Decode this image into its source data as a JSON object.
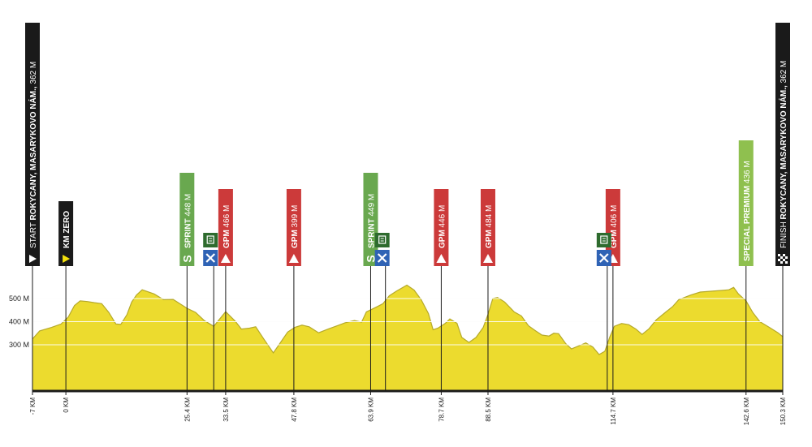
{
  "chart_data": {
    "type": "area",
    "ylabel_ticks": [
      "300 M",
      "400 M",
      "500 M"
    ],
    "y_ticks_values": [
      300,
      400,
      500
    ],
    "x_range_km": [
      -7,
      150.3
    ],
    "y_range_m": [
      100,
      600
    ],
    "fill_color": "#ecdb2e",
    "outline_color": "#b5a92a",
    "profile": [
      {
        "x": -7,
        "y": 325
      },
      {
        "x": -5.5,
        "y": 360
      },
      {
        "x": -3,
        "y": 375
      },
      {
        "x": -1,
        "y": 390
      },
      {
        "x": 0.5,
        "y": 420
      },
      {
        "x": 1.8,
        "y": 470
      },
      {
        "x": 3,
        "y": 490
      },
      {
        "x": 4.5,
        "y": 487
      },
      {
        "x": 6,
        "y": 482
      },
      {
        "x": 7.5,
        "y": 478
      },
      {
        "x": 9,
        "y": 440
      },
      {
        "x": 10.5,
        "y": 390
      },
      {
        "x": 11.5,
        "y": 388
      },
      {
        "x": 12.8,
        "y": 430
      },
      {
        "x": 13.8,
        "y": 485
      },
      {
        "x": 14.8,
        "y": 515
      },
      {
        "x": 16,
        "y": 538
      },
      {
        "x": 18.5,
        "y": 520
      },
      {
        "x": 20.5,
        "y": 495
      },
      {
        "x": 22.5,
        "y": 496
      },
      {
        "x": 25.4,
        "y": 458
      },
      {
        "x": 27.2,
        "y": 440
      },
      {
        "x": 29,
        "y": 405
      },
      {
        "x": 31,
        "y": 380
      },
      {
        "x": 33.5,
        "y": 443
      },
      {
        "x": 35.5,
        "y": 402
      },
      {
        "x": 36.8,
        "y": 368
      },
      {
        "x": 38.5,
        "y": 372
      },
      {
        "x": 39.8,
        "y": 378
      },
      {
        "x": 41.5,
        "y": 325
      },
      {
        "x": 43.5,
        "y": 265
      },
      {
        "x": 45,
        "y": 310
      },
      {
        "x": 46.5,
        "y": 355
      },
      {
        "x": 48,
        "y": 375
      },
      {
        "x": 49.5,
        "y": 385
      },
      {
        "x": 51,
        "y": 378
      },
      {
        "x": 53,
        "y": 352
      },
      {
        "x": 55,
        "y": 368
      },
      {
        "x": 57,
        "y": 383
      },
      {
        "x": 58.5,
        "y": 395
      },
      {
        "x": 60.5,
        "y": 405
      },
      {
        "x": 62,
        "y": 398
      },
      {
        "x": 63,
        "y": 442
      },
      {
        "x": 65,
        "y": 462
      },
      {
        "x": 66.5,
        "y": 478
      },
      {
        "x": 67.8,
        "y": 512
      },
      {
        "x": 69.3,
        "y": 532
      },
      {
        "x": 71.5,
        "y": 558
      },
      {
        "x": 73,
        "y": 537
      },
      {
        "x": 74.5,
        "y": 495
      },
      {
        "x": 76,
        "y": 435
      },
      {
        "x": 77,
        "y": 365
      },
      {
        "x": 78,
        "y": 372
      },
      {
        "x": 79.5,
        "y": 392
      },
      {
        "x": 80.5,
        "y": 412
      },
      {
        "x": 82,
        "y": 393
      },
      {
        "x": 83,
        "y": 332
      },
      {
        "x": 84.5,
        "y": 310
      },
      {
        "x": 86,
        "y": 332
      },
      {
        "x": 87.5,
        "y": 375
      },
      {
        "x": 88.5,
        "y": 432
      },
      {
        "x": 89.5,
        "y": 500
      },
      {
        "x": 90.5,
        "y": 505
      },
      {
        "x": 92,
        "y": 485
      },
      {
        "x": 94,
        "y": 442
      },
      {
        "x": 95.5,
        "y": 425
      },
      {
        "x": 97,
        "y": 382
      },
      {
        "x": 98.5,
        "y": 360
      },
      {
        "x": 99.8,
        "y": 342
      },
      {
        "x": 101.3,
        "y": 338
      },
      {
        "x": 102.3,
        "y": 350
      },
      {
        "x": 103.3,
        "y": 348
      },
      {
        "x": 104.8,
        "y": 305
      },
      {
        "x": 106,
        "y": 282
      },
      {
        "x": 107.5,
        "y": 295
      },
      {
        "x": 109,
        "y": 308
      },
      {
        "x": 110.5,
        "y": 290
      },
      {
        "x": 111.8,
        "y": 258
      },
      {
        "x": 113,
        "y": 272
      },
      {
        "x": 114,
        "y": 332
      },
      {
        "x": 115,
        "y": 380
      },
      {
        "x": 116.5,
        "y": 392
      },
      {
        "x": 118,
        "y": 387
      },
      {
        "x": 119.5,
        "y": 368
      },
      {
        "x": 120.8,
        "y": 345
      },
      {
        "x": 122.2,
        "y": 368
      },
      {
        "x": 123.8,
        "y": 408
      },
      {
        "x": 125.8,
        "y": 442
      },
      {
        "x": 127.2,
        "y": 465
      },
      {
        "x": 128.5,
        "y": 495
      },
      {
        "x": 131,
        "y": 515
      },
      {
        "x": 133,
        "y": 528
      },
      {
        "x": 135.5,
        "y": 532
      },
      {
        "x": 137.5,
        "y": 535
      },
      {
        "x": 139,
        "y": 538
      },
      {
        "x": 140,
        "y": 548
      },
      {
        "x": 141,
        "y": 520
      },
      {
        "x": 142.6,
        "y": 490
      },
      {
        "x": 144,
        "y": 440
      },
      {
        "x": 145.5,
        "y": 400
      },
      {
        "x": 147.5,
        "y": 375
      },
      {
        "x": 149.3,
        "y": 352
      },
      {
        "x": 150.3,
        "y": 335
      }
    ],
    "km_markers": [
      {
        "x": -7,
        "label": "-7 KM"
      },
      {
        "x": 0,
        "label": "0 KM"
      },
      {
        "x": 25.4,
        "label": "25.4 KM"
      },
      {
        "x": 33.5,
        "label": "33.5 KM"
      },
      {
        "x": 47.8,
        "label": "47.8 KM"
      },
      {
        "x": 63.9,
        "label": "63.9 KM"
      },
      {
        "x": 78.7,
        "label": "78.7 KM"
      },
      {
        "x": 88.5,
        "label": "88.5 KM"
      },
      {
        "x": 114.7,
        "label": "114.7 KM"
      },
      {
        "x": 142.6,
        "label": "142.6 KM"
      },
      {
        "x": 150.3,
        "label": "150.3 KM"
      }
    ],
    "markers": [
      {
        "x": -7,
        "type": "start",
        "label_prefix": "START",
        "label_bold": "ROKYCANY, MASARYKOVO NÁM.,",
        "label_suffix": "362 M",
        "color": "#1a1a1a",
        "text_color": "#ffffff",
        "icon": "play-icon"
      },
      {
        "x": 0,
        "type": "km-zero",
        "label_prefix": "",
        "label_bold": "KM ZERO",
        "label_suffix": "",
        "color": "#1a1a1a",
        "text_color": "#f5e20c",
        "icon": "play-icon-yellow"
      },
      {
        "x": 25.4,
        "type": "sprint",
        "label_prefix": "",
        "label_bold": "SPRINT",
        "label_suffix": "448 M",
        "color": "#69a84f",
        "text_color": "#ffffff",
        "icon": "sprint-s-icon"
      },
      {
        "x": 33.5,
        "type": "gpm",
        "label_prefix": "",
        "label_bold": "GPM",
        "label_suffix": "466 M",
        "color": "#cc3a3a",
        "text_color": "#ffffff",
        "icon": "mountain-icon"
      },
      {
        "x": 47.8,
        "type": "gpm",
        "label_prefix": "",
        "label_bold": "GPM",
        "label_suffix": "399 M",
        "color": "#cc3a3a",
        "text_color": "#ffffff",
        "icon": "mountain-icon"
      },
      {
        "x": 63.9,
        "type": "sprint",
        "label_prefix": "",
        "label_bold": "SPRINT",
        "label_suffix": "449 M",
        "color": "#69a84f",
        "text_color": "#ffffff",
        "icon": "sprint-s-icon"
      },
      {
        "x": 78.7,
        "type": "gpm",
        "label_prefix": "",
        "label_bold": "GPM",
        "label_suffix": "446 M",
        "color": "#cc3a3a",
        "text_color": "#ffffff",
        "icon": "mountain-icon"
      },
      {
        "x": 88.5,
        "type": "gpm",
        "label_prefix": "",
        "label_bold": "GPM",
        "label_suffix": "484 M",
        "color": "#cc3a3a",
        "text_color": "#ffffff",
        "icon": "mountain-icon"
      },
      {
        "x": 114.7,
        "type": "gpm",
        "label_prefix": "",
        "label_bold": "GPM",
        "label_suffix": "406 M",
        "color": "#cc3a3a",
        "text_color": "#ffffff",
        "icon": "mountain-icon"
      },
      {
        "x": 142.6,
        "type": "special",
        "label_prefix": "",
        "label_bold": "SPECIAL PREMIUM",
        "label_suffix": "436 M",
        "color": "#8fc04f",
        "text_color": "#ffffff",
        "icon": ""
      },
      {
        "x": 150.3,
        "type": "finish",
        "label_prefix": "FINISH",
        "label_bold": "ROKYCANY, MASARYKOVO NÁM.,",
        "label_suffix": "362 M",
        "color": "#1a1a1a",
        "text_color": "#ffffff",
        "icon": "checkered-flag-icon"
      }
    ],
    "service_points": [
      {
        "x": 31,
        "icons": [
          "feed-zone-icon",
          "tools-icon"
        ]
      },
      {
        "x": 67,
        "icons": [
          "feed-zone-icon",
          "tools-icon"
        ]
      },
      {
        "x": 113.5,
        "icons": [
          "feed-zone-icon",
          "tools-icon"
        ]
      }
    ]
  }
}
